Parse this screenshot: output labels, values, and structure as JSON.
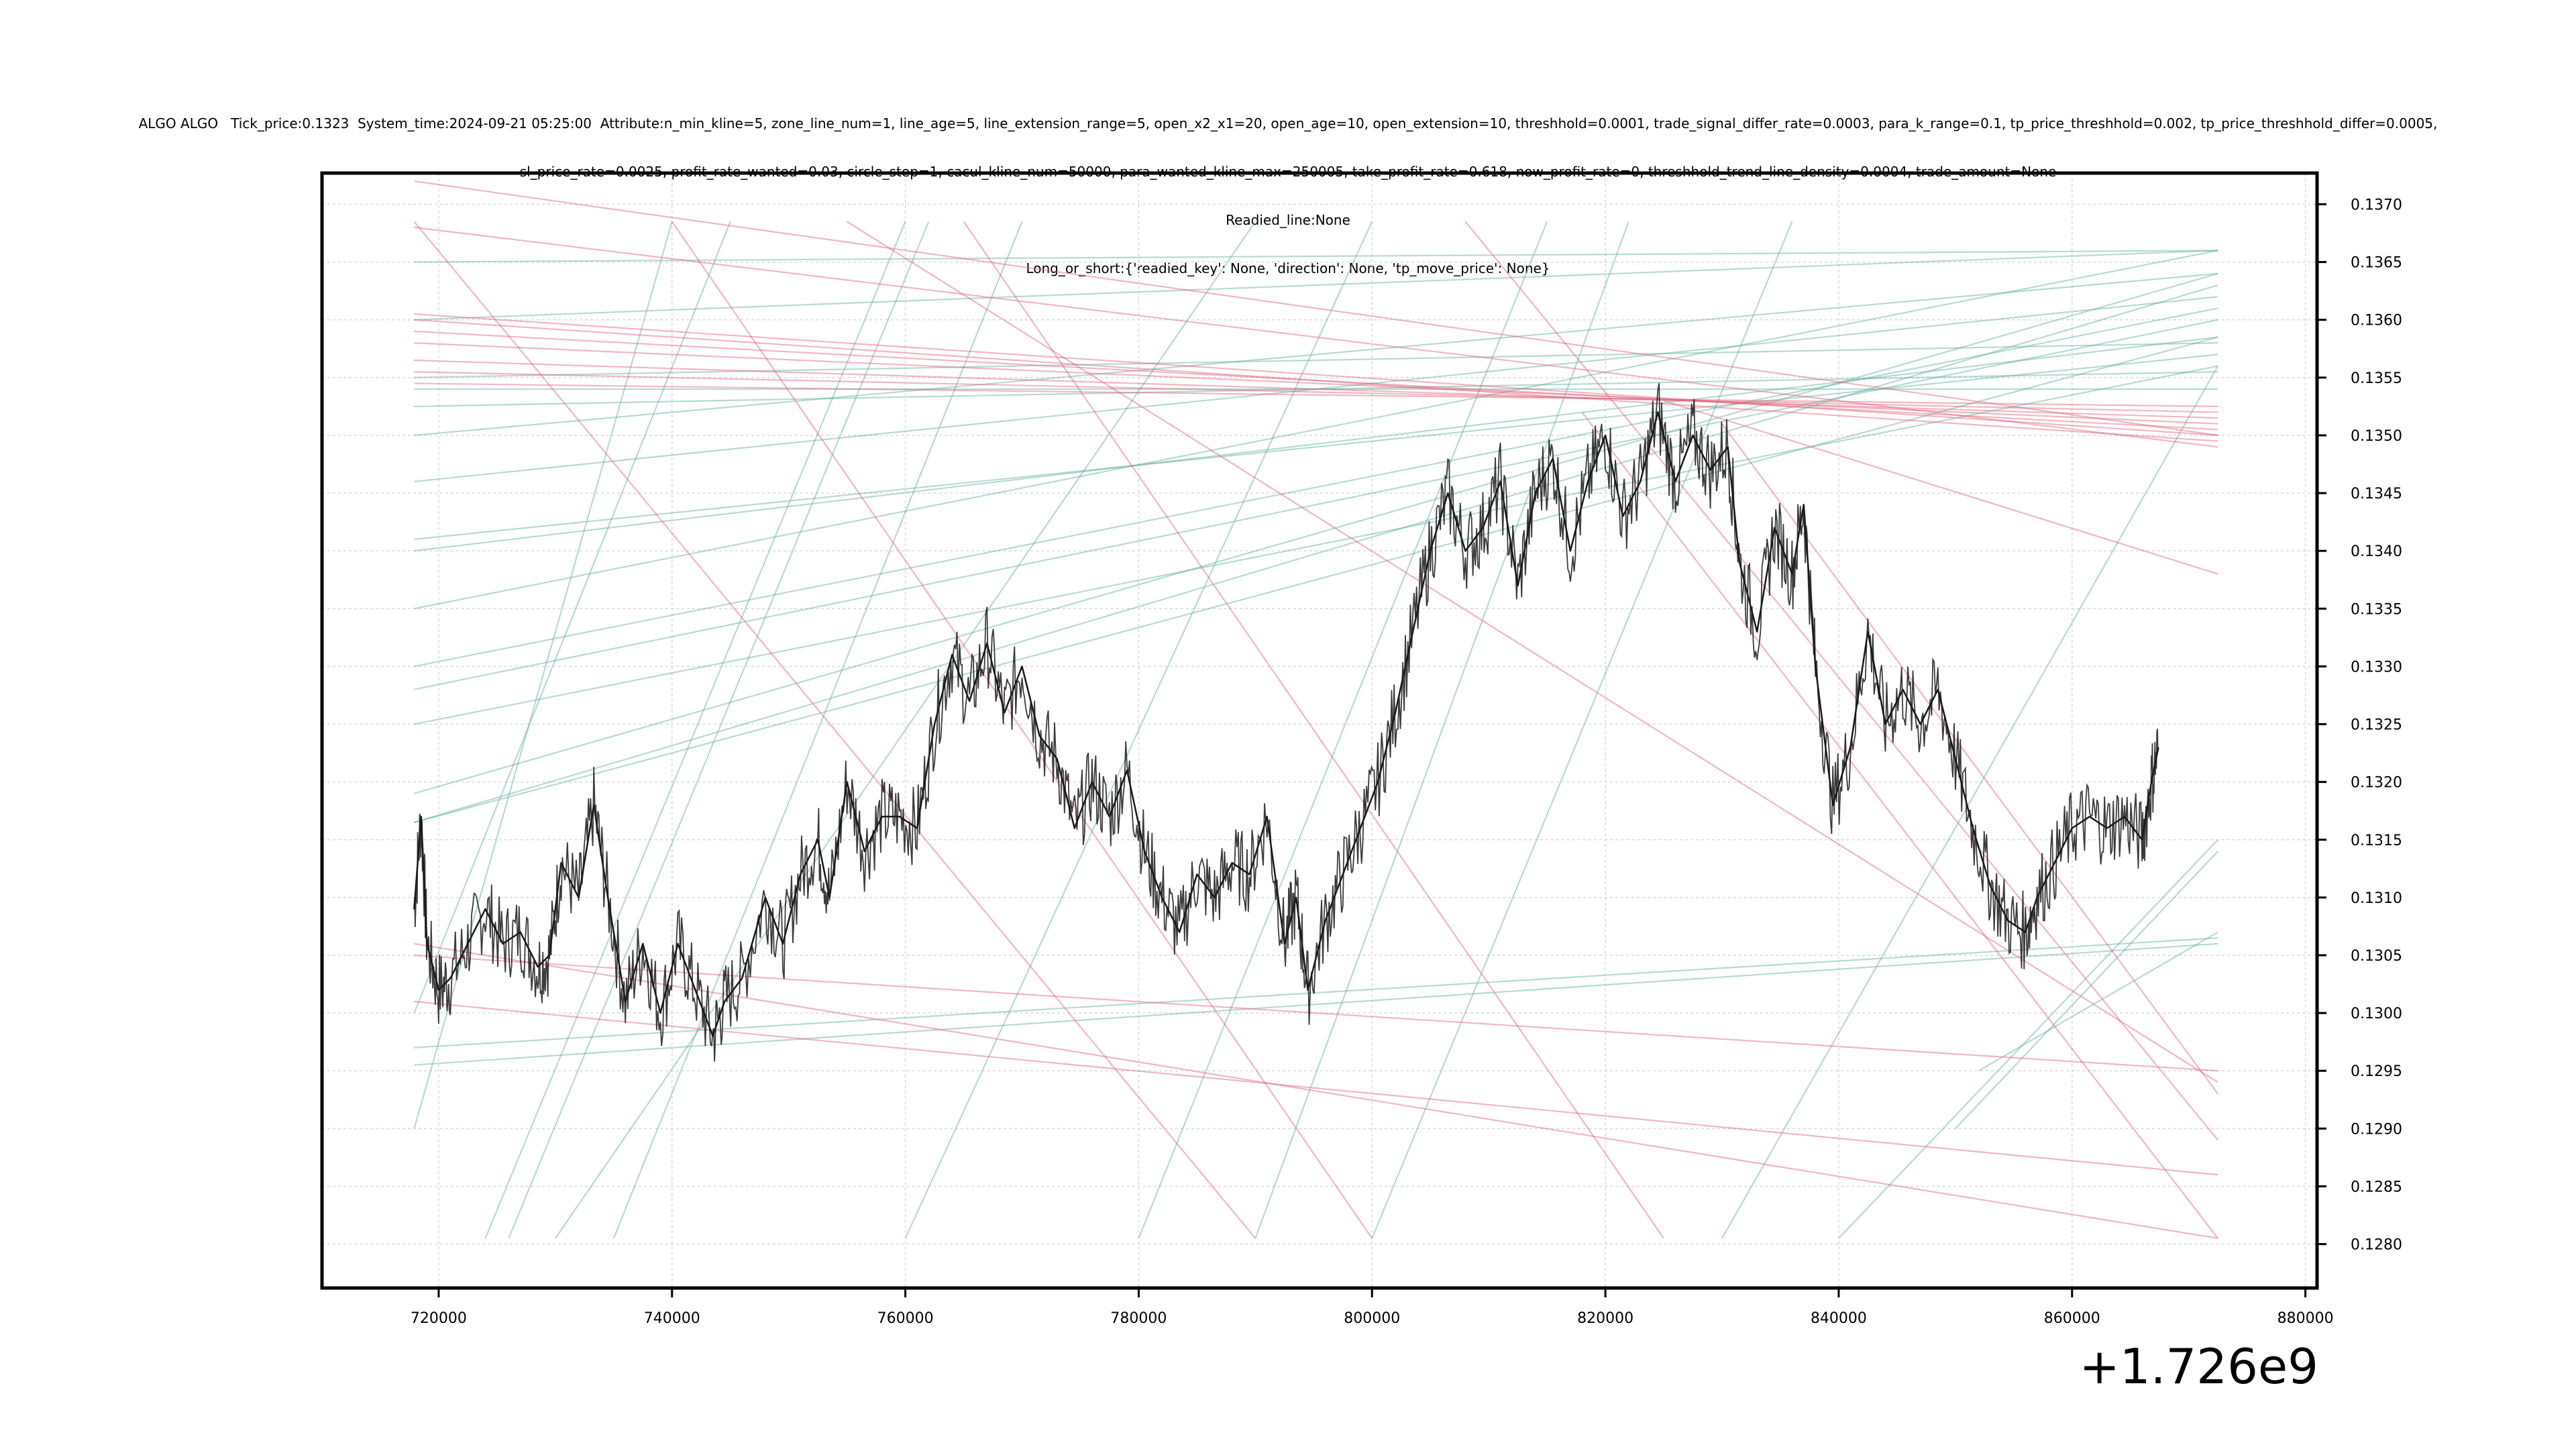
{
  "title_lines": [
    "ALGO ALGO   Tick_price:0.1323  System_time:2024-09-21 05:25:00  Attribute:n_min_kline=5, zone_line_num=1, line_age=5, line_extension_range=5, open_x2_x1=20, open_age=10, open_extension=10, threshhold=0.0001, trade_signal_differ_rate=0.0003, para_k_range=0.1, tp_price_threshhold=0.002, tp_price_threshhold_differ=0.0005,",
    "sl_price_rate=0.0025, profit_rate_wanted=0.03, circle_step=1, cacul_kline_num=50000, para_wanted_kline_max=250005, take_profit_rate=0.618, now_profit_rate=0, threshhold_trend_line_density=0.0004, trade_amount=None",
    "Readied_line:None",
    "Long_or_short:{'readied_key': None, 'direction': None, 'tp_move_price': None}"
  ],
  "x_offset_label": "+1.726e9",
  "colors": {
    "price": "#1a1a1a",
    "support": "#5fae9f",
    "resistance": "#e0607a",
    "grid": "#d9d9d9",
    "axis": "#000000"
  },
  "chart_data": {
    "type": "line",
    "title": "",
    "xlabel": "",
    "ylabel": "",
    "xlim": [
      710000,
      881000
    ],
    "ylim": [
      0.12762,
      0.13727
    ],
    "x_ticks": [
      720000,
      740000,
      760000,
      780000,
      800000,
      820000,
      840000,
      860000,
      880000
    ],
    "x_tick_labels": [
      "720000",
      "740000",
      "760000",
      "780000",
      "800000",
      "820000",
      "840000",
      "860000",
      "880000"
    ],
    "y_ticks": [
      0.128,
      0.1285,
      0.129,
      0.1295,
      0.13,
      0.1305,
      0.131,
      0.1315,
      0.132,
      0.1325,
      0.133,
      0.1335,
      0.134,
      0.1345,
      0.135,
      0.1355,
      0.136,
      0.1365,
      0.137
    ],
    "y_tick_labels": [
      "0.1280",
      "0.1285",
      "0.1290",
      "0.1295",
      "0.1300",
      "0.1305",
      "0.1310",
      "0.1315",
      "0.1320",
      "0.1325",
      "0.1330",
      "0.1335",
      "0.1340",
      "0.1345",
      "0.1350",
      "0.1355",
      "0.1360",
      "0.1365",
      "0.1370"
    ],
    "grid": true,
    "y_axis_side": "right",
    "series": [
      {
        "kind": "price",
        "x": [
          717900,
          718500,
          719000,
          720000,
          721000,
          722500,
          724000,
          725500,
          727000,
          728500,
          729500,
          730500,
          732000,
          733300,
          734500,
          736000,
          737500,
          739000,
          740500,
          742000,
          743500,
          744500,
          746000,
          748000,
          749500,
          751000,
          752500,
          753500,
          755000,
          756500,
          758000,
          759500,
          761000,
          762500,
          764000,
          765500,
          767000,
          768500,
          770000,
          771500,
          773000,
          774500,
          776000,
          777500,
          779000,
          780500,
          782000,
          783500,
          785000,
          786500,
          788000,
          789500,
          791000,
          792500,
          793500,
          794500,
          796000,
          797500,
          799000,
          800500,
          802000,
          803500,
          805000,
          806500,
          808000,
          809500,
          811000,
          812500,
          814000,
          815500,
          817000,
          818500,
          820000,
          821500,
          823000,
          824500,
          826000,
          827500,
          829000,
          830500,
          831500,
          833000,
          834500,
          836000,
          837000,
          838000,
          839500,
          841000,
          842500,
          844000,
          845500,
          847000,
          848500,
          850000,
          851500,
          853000,
          854500,
          856000,
          857000,
          858500,
          860000,
          861500,
          863000,
          864500,
          866000,
          866800,
          867400
        ],
        "y": [
          0.1309,
          0.1317,
          0.1306,
          0.1302,
          0.1303,
          0.1306,
          0.1309,
          0.1306,
          0.1307,
          0.1304,
          0.1305,
          0.1313,
          0.131,
          0.1318,
          0.131,
          0.1301,
          0.1306,
          0.13,
          0.1306,
          0.1302,
          0.1298,
          0.1301,
          0.1303,
          0.131,
          0.1306,
          0.1312,
          0.1315,
          0.131,
          0.132,
          0.1314,
          0.1317,
          0.1317,
          0.1316,
          0.1325,
          0.1331,
          0.1327,
          0.1332,
          0.1326,
          0.133,
          0.1324,
          0.1322,
          0.1316,
          0.132,
          0.1317,
          0.1321,
          0.1314,
          0.131,
          0.1307,
          0.1312,
          0.131,
          0.1313,
          0.1312,
          0.1317,
          0.1306,
          0.131,
          0.1302,
          0.1308,
          0.1312,
          0.1316,
          0.132,
          0.1326,
          0.1333,
          0.134,
          0.1345,
          0.134,
          0.1342,
          0.1346,
          0.1337,
          0.1345,
          0.1348,
          0.134,
          0.1346,
          0.135,
          0.1343,
          0.1346,
          0.1352,
          0.1346,
          0.135,
          0.1347,
          0.1349,
          0.1339,
          0.1333,
          0.1342,
          0.1338,
          0.1344,
          0.133,
          0.1318,
          0.1323,
          0.1333,
          0.1325,
          0.1328,
          0.1325,
          0.1328,
          0.1322,
          0.1316,
          0.1311,
          0.1308,
          0.1307,
          0.131,
          0.1313,
          0.1316,
          0.1317,
          0.1316,
          0.1317,
          0.1315,
          0.132,
          0.1323
        ]
      },
      {
        "kind": "support",
        "lines": [
          {
            "x": [
              717900,
              872500
            ],
            "y": [
              0.13165,
              0.13585
            ]
          },
          {
            "x": [
              717900,
              872500
            ],
            "y": [
              0.13165,
              0.1363
            ]
          },
          {
            "x": [
              717900,
              872500
            ],
            "y": [
              0.1319,
              0.1364
            ]
          },
          {
            "x": [
              717900,
              872500
            ],
            "y": [
              0.1325,
              0.1356
            ]
          },
          {
            "x": [
              717900,
              872500
            ],
            "y": [
              0.1328,
              0.136
            ]
          },
          {
            "x": [
              717900,
              872500
            ],
            "y": [
              0.134,
              0.13585
            ]
          },
          {
            "x": [
              717900,
              872500
            ],
            "y": [
              0.1341,
              0.1357
            ]
          },
          {
            "x": [
              717900,
              872500
            ],
            "y": [
              0.1346,
              0.1362
            ]
          },
          {
            "x": [
              717900,
              872500
            ],
            "y": [
              0.135,
              0.1364
            ]
          },
          {
            "x": [
              717900,
              872500
            ],
            "y": [
              0.13525,
              0.13555
            ]
          },
          {
            "x": [
              717900,
              872500
            ],
            "y": [
              0.1354,
              0.1354
            ]
          },
          {
            "x": [
              717900,
              872500
            ],
            "y": [
              0.1355,
              0.1358
            ]
          },
          {
            "x": [
              717900,
              872500
            ],
            "y": [
              0.136,
              0.1366
            ]
          },
          {
            "x": [
              717900,
              872500
            ],
            "y": [
              0.1365,
              0.1366
            ]
          },
          {
            "x": [
              717900,
              872500
            ],
            "y": [
              0.12955,
              0.1306
            ]
          },
          {
            "x": [
              717900,
              872500
            ],
            "y": [
              0.1297,
              0.13065
            ]
          },
          {
            "x": [
              724000,
              760000
            ],
            "y": [
              0.12805,
              0.13685
            ]
          },
          {
            "x": [
              726000,
              762000
            ],
            "y": [
              0.12805,
              0.13685
            ]
          },
          {
            "x": [
              735000,
              770000
            ],
            "y": [
              0.12805,
              0.13685
            ]
          },
          {
            "x": [
              760000,
              800000
            ],
            "y": [
              0.12805,
              0.13685
            ]
          },
          {
            "x": [
              790000,
              822000
            ],
            "y": [
              0.12805,
              0.13685
            ]
          },
          {
            "x": [
              800000,
              836000
            ],
            "y": [
              0.12805,
              0.13685
            ]
          },
          {
            "x": [
              830000,
              872500
            ],
            "y": [
              0.12805,
              0.1356
            ]
          },
          {
            "x": [
              840000,
              872500
            ],
            "y": [
              0.12805,
              0.1315
            ]
          },
          {
            "x": [
              850000,
              872500
            ],
            "y": [
              0.129,
              0.1314
            ]
          },
          {
            "x": [
              852000,
              872500
            ],
            "y": [
              0.1295,
              0.1307
            ]
          },
          {
            "x": [
              717900,
              740000
            ],
            "y": [
              0.129,
              0.13685
            ]
          },
          {
            "x": [
              717900,
              745000
            ],
            "y": [
              0.13,
              0.13685
            ]
          },
          {
            "x": [
              730000,
              790000
            ],
            "y": [
              0.12805,
              0.13685
            ]
          },
          {
            "x": [
              780000,
              815000
            ],
            "y": [
              0.12805,
              0.13685
            ]
          },
          {
            "x": [
              717900,
              872500
            ],
            "y": [
              0.1335,
              0.1366
            ]
          },
          {
            "x": [
              717900,
              872500
            ],
            "y": [
              0.133,
              0.1361
            ]
          }
        ]
      },
      {
        "kind": "resistance",
        "lines": [
          {
            "x": [
              717900,
              872500
            ],
            "y": [
              0.13605,
              0.135
            ]
          },
          {
            "x": [
              717900,
              872500
            ],
            "y": [
              0.136,
              0.13495
            ]
          },
          {
            "x": [
              717900,
              872500
            ],
            "y": [
              0.1359,
              0.13505
            ]
          },
          {
            "x": [
              717900,
              872500
            ],
            "y": [
              0.1358,
              0.1351
            ]
          },
          {
            "x": [
              717900,
              872500
            ],
            "y": [
              0.13565,
              0.13515
            ]
          },
          {
            "x": [
              717900,
              872500
            ],
            "y": [
              0.13555,
              0.1352
            ]
          },
          {
            "x": [
              717900,
              872500
            ],
            "y": [
              0.13545,
              0.13525
            ]
          },
          {
            "x": [
              717900,
              872500
            ],
            "y": [
              0.1368,
              0.1349
            ]
          },
          {
            "x": [
              717900,
              872500
            ],
            "y": [
              0.1306,
              0.12805
            ]
          },
          {
            "x": [
              717900,
              872500
            ],
            "y": [
              0.1301,
              0.1286
            ]
          },
          {
            "x": [
              717900,
              872500
            ],
            "y": [
              0.1305,
              0.1295
            ]
          },
          {
            "x": [
              717900,
              790000
            ],
            "y": [
              0.13685,
              0.12805
            ]
          },
          {
            "x": [
              740000,
              800000
            ],
            "y": [
              0.13685,
              0.12805
            ]
          },
          {
            "x": [
              765000,
              825000
            ],
            "y": [
              0.13685,
              0.12805
            ]
          },
          {
            "x": [
              808000,
              872500
            ],
            "y": [
              0.13685,
              0.1289
            ]
          },
          {
            "x": [
              818000,
              872500
            ],
            "y": [
              0.1352,
              0.12805
            ]
          },
          {
            "x": [
              825000,
              872500
            ],
            "y": [
              0.1353,
              0.1338
            ]
          },
          {
            "x": [
              830000,
              872500
            ],
            "y": [
              0.1351,
              0.1293
            ]
          },
          {
            "x": [
              717900,
              872500
            ],
            "y": [
              0.1372,
              0.135
            ]
          },
          {
            "x": [
              755000,
              872500
            ],
            "y": [
              0.13685,
              0.1294
            ]
          }
        ]
      }
    ]
  }
}
